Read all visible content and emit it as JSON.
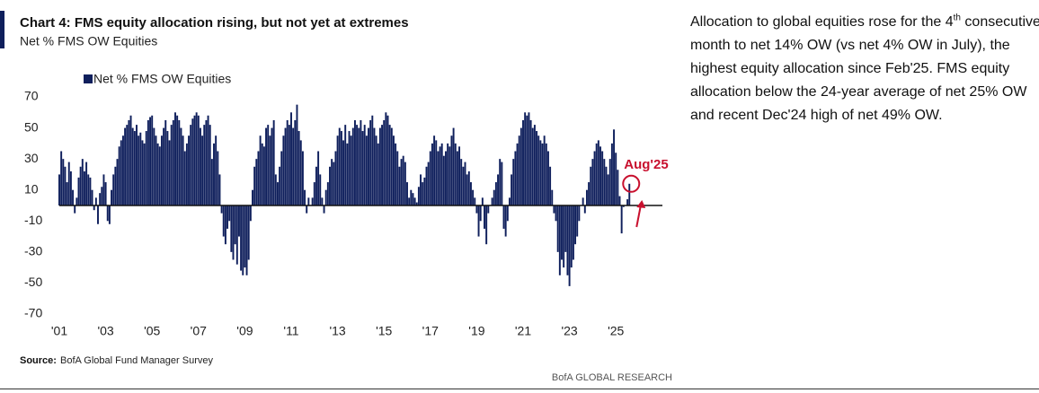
{
  "chart_data": {
    "type": "bar",
    "title": "Chart 4: FMS equity allocation rising, but not yet at extremes",
    "subtitle": "Net % FMS OW Equities",
    "categories": [
      "'01",
      null,
      null,
      null,
      null,
      null,
      null,
      null,
      null,
      null,
      null,
      null,
      null,
      null,
      null,
      null,
      null,
      null,
      null,
      null,
      null,
      null,
      null,
      null,
      "'03",
      null,
      null,
      null,
      null,
      null,
      null,
      null,
      null,
      null,
      null,
      null,
      null,
      null,
      null,
      null,
      null,
      null,
      null,
      null,
      null,
      null,
      null,
      null,
      "'05",
      null,
      null,
      null,
      null,
      null,
      null,
      null,
      null,
      null,
      null,
      null,
      null,
      null,
      null,
      null,
      null,
      null,
      null,
      null,
      null,
      null,
      null,
      null,
      "'07",
      null,
      null,
      null,
      null,
      null,
      null,
      null,
      null,
      null,
      null,
      null,
      null,
      null,
      null,
      null,
      null,
      null,
      null,
      null,
      null,
      null,
      null,
      null,
      "'09",
      null,
      null,
      null,
      null,
      null,
      null,
      null,
      null,
      null,
      null,
      null,
      null,
      null,
      null,
      null,
      null,
      null,
      null,
      null,
      null,
      null,
      null,
      null,
      "'11",
      null,
      null,
      null,
      null,
      null,
      null,
      null,
      null,
      null,
      null,
      null,
      null,
      null,
      null,
      null,
      null,
      null,
      null,
      null,
      null,
      null,
      null,
      null,
      "'13",
      null,
      null,
      null,
      null,
      null,
      null,
      null,
      null,
      null,
      null,
      null,
      null,
      null,
      null,
      null,
      null,
      null,
      null,
      null,
      null,
      null,
      null,
      null,
      "'15",
      null,
      null,
      null,
      null,
      null,
      null,
      null,
      null,
      null,
      null,
      null,
      null,
      null,
      null,
      null,
      null,
      null,
      null,
      null,
      null,
      null,
      null,
      null,
      "'17",
      null,
      null,
      null,
      null,
      null,
      null,
      null,
      null,
      null,
      null,
      null,
      null,
      null,
      null,
      null,
      null,
      null,
      null,
      null,
      null,
      null,
      null,
      null,
      "'19",
      null,
      null,
      null,
      null,
      null,
      null,
      null,
      null,
      null,
      null,
      null,
      null,
      null,
      null,
      null,
      null,
      null,
      null,
      null,
      null,
      null,
      null,
      null,
      "'21",
      null,
      null,
      null,
      null,
      null,
      null,
      null,
      null,
      null,
      null,
      null,
      null,
      null,
      null,
      null,
      null,
      null,
      null,
      null,
      null,
      null,
      null,
      null,
      "'23",
      null,
      null,
      null,
      null,
      null,
      null,
      null,
      null,
      null,
      null,
      null,
      null,
      null,
      null,
      null,
      null,
      null,
      null,
      null,
      null,
      null,
      null,
      null,
      "'25",
      null,
      null,
      null,
      null,
      null,
      null,
      null
    ],
    "series": [
      {
        "name": "Net % FMS OW Equities",
        "color": "#0f1f5c",
        "values": [
          20,
          35,
          30,
          25,
          15,
          28,
          22,
          10,
          -5,
          5,
          18,
          25,
          30,
          22,
          28,
          20,
          18,
          10,
          -3,
          5,
          -12,
          8,
          12,
          20,
          15,
          -10,
          -12,
          10,
          20,
          25,
          30,
          38,
          42,
          45,
          50,
          52,
          55,
          58,
          50,
          48,
          52,
          45,
          47,
          42,
          40,
          48,
          55,
          57,
          58,
          50,
          45,
          40,
          38,
          45,
          50,
          55,
          48,
          42,
          52,
          55,
          60,
          58,
          55,
          50,
          45,
          35,
          40,
          45,
          52,
          56,
          58,
          60,
          58,
          50,
          45,
          52,
          55,
          58,
          52,
          30,
          40,
          45,
          35,
          20,
          -5,
          -20,
          -25,
          -15,
          -10,
          -30,
          -35,
          -25,
          -38,
          -20,
          -42,
          -45,
          -40,
          -45,
          -35,
          -10,
          10,
          25,
          30,
          35,
          45,
          40,
          38,
          50,
          52,
          45,
          50,
          55,
          20,
          15,
          25,
          35,
          45,
          50,
          55,
          52,
          60,
          50,
          55,
          65,
          48,
          42,
          35,
          10,
          -5,
          5,
          0,
          5,
          15,
          25,
          35,
          20,
          5,
          -5,
          10,
          15,
          25,
          30,
          28,
          35,
          45,
          50,
          48,
          42,
          52,
          40,
          48,
          45,
          50,
          55,
          52,
          50,
          55,
          48,
          52,
          45,
          50,
          55,
          58,
          50,
          45,
          40,
          50,
          52,
          55,
          60,
          58,
          52,
          50,
          45,
          40,
          35,
          25,
          30,
          32,
          28,
          15,
          5,
          10,
          8,
          5,
          2,
          12,
          20,
          15,
          18,
          25,
          28,
          35,
          40,
          45,
          42,
          35,
          38,
          40,
          32,
          35,
          40,
          38,
          45,
          50,
          40,
          35,
          38,
          30,
          25,
          28,
          20,
          22,
          15,
          10,
          5,
          -5,
          -20,
          -10,
          5,
          -15,
          -25,
          -5,
          0,
          5,
          10,
          15,
          20,
          30,
          28,
          -15,
          -20,
          -10,
          5,
          20,
          30,
          35,
          40,
          45,
          50,
          55,
          60,
          58,
          60,
          55,
          50,
          52,
          48,
          45,
          42,
          40,
          45,
          40,
          35,
          25,
          10,
          -5,
          -10,
          -30,
          -45,
          -35,
          -40,
          -30,
          -45,
          -52,
          -40,
          -35,
          -25,
          -20,
          -10,
          0,
          5,
          -5,
          10,
          15,
          25,
          30,
          35,
          40,
          42,
          38,
          35,
          30,
          25,
          20,
          30,
          40,
          49,
          34,
          23,
          6,
          -18,
          -1,
          0,
          4,
          14
        ]
      }
    ],
    "ylim": [
      -70,
      70
    ],
    "yticks": [
      70,
      50,
      30,
      10,
      -10,
      -30,
      -50,
      -70
    ],
    "grid": false,
    "legend": "top-left",
    "annotation": {
      "text": "Aug'25",
      "color": "#c8102e"
    }
  },
  "commentary": {
    "before": "Allocation to global equities rose for the 4",
    "sup": "th",
    "after": " consecutive month to net 14% OW (vs net 4% OW in July), the highest equity allocation since Feb'25. FMS equity allocation below the 24-year average of net 25% OW and recent Dec'24 high of net 49% OW."
  },
  "source": {
    "label": "Source:",
    "text": "BofA Global Fund Manager Survey"
  },
  "branding": "BofA GLOBAL RESEARCH"
}
